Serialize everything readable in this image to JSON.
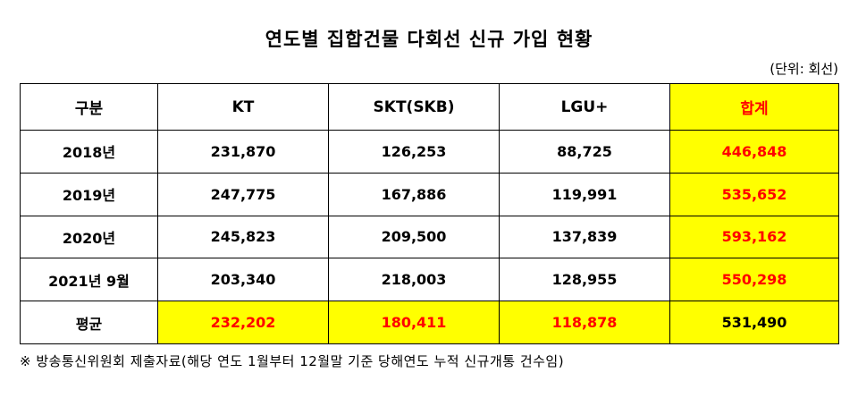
{
  "title": "연도별 집합건물 다회선 신규 가입 현황",
  "unit": "(단위: 회선)",
  "table": {
    "headers": [
      "구분",
      "KT",
      "SKT(SKB)",
      "LGU+",
      "합계"
    ],
    "rows": [
      [
        "2018년",
        "231,870",
        "126,253",
        "88,725",
        "446,848"
      ],
      [
        "2019년",
        "247,775",
        "167,886",
        "119,991",
        "535,652"
      ],
      [
        "2020년",
        "245,823",
        "209,500",
        "137,839",
        "593,162"
      ],
      [
        "2021년 9월",
        "203,340",
        "218,003",
        "128,955",
        "550,298"
      ],
      [
        "평균",
        "232,202",
        "180,411",
        "118,878",
        "531,490"
      ]
    ]
  },
  "colors": {
    "highlight": "#ffff00",
    "emphasis_text": "#ff0000"
  },
  "footnote": "※ 방송통신위원회 제출자료(해당 연도 1월부터 12월말 기준 당해연도 누적 신규개통 건수임)"
}
